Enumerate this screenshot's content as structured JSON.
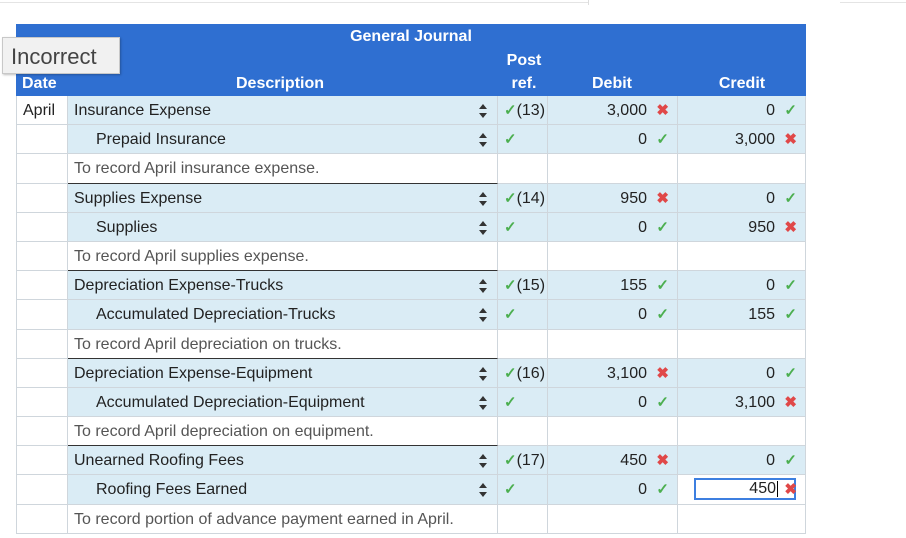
{
  "status": "Incorrect",
  "header": {
    "title": "General Journal",
    "date": "Date",
    "description": "Description",
    "post": "Post",
    "ref": "ref.",
    "debit": "Debit",
    "credit": "Credit"
  },
  "rows": [
    {
      "date": "April",
      "desc": "Insurance Expense",
      "ref": "(13)",
      "debit": "3,000",
      "credit": "0"
    },
    {
      "date": "",
      "desc": "Prepaid Insurance",
      "ref": "",
      "debit": "0",
      "credit": "3,000"
    },
    {
      "date": "",
      "desc": "To record April insurance expense."
    },
    {
      "date": "",
      "desc": "Supplies Expense",
      "ref": "(14)",
      "debit": "950",
      "credit": "0"
    },
    {
      "date": "",
      "desc": "Supplies",
      "ref": "",
      "debit": "0",
      "credit": "950"
    },
    {
      "date": "",
      "desc": "To record April supplies expense."
    },
    {
      "date": "",
      "desc": "Depreciation Expense-Trucks",
      "ref": "(15)",
      "debit": "155",
      "credit": "0"
    },
    {
      "date": "",
      "desc": "Accumulated Depreciation-Trucks",
      "ref": "",
      "debit": "0",
      "credit": "155"
    },
    {
      "date": "",
      "desc": "To record April depreciation on trucks."
    },
    {
      "date": "",
      "desc": "Depreciation Expense-Equipment",
      "ref": "(16)",
      "debit": "3,100",
      "credit": "0"
    },
    {
      "date": "",
      "desc": "Accumulated Depreciation-Equipment",
      "ref": "",
      "debit": "0",
      "credit": "3,100"
    },
    {
      "date": "",
      "desc": "To record April depreciation on equipment."
    },
    {
      "date": "",
      "desc": "Unearned Roofing Fees",
      "ref": "(17)",
      "debit": "450",
      "credit": "0"
    },
    {
      "date": "",
      "desc": "Roofing Fees Earned",
      "ref": "",
      "debit": "0",
      "credit": "450"
    },
    {
      "date": "",
      "desc": "To record portion of advance payment earned in April."
    }
  ],
  "colors": {
    "header": "#2f6fd1",
    "row": "#daecf5",
    "check": "#4caf50",
    "cross": "#e04848"
  }
}
